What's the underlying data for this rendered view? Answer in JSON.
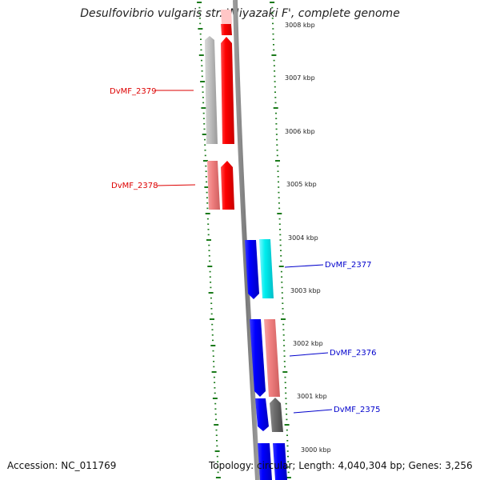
{
  "title": "Desulfovibrio vulgaris str. 'Miyazaki F', complete genome",
  "footer": {
    "accession": "Accession: NC_011769",
    "topology": "Topology: circular; Length: 4,040,304 bp; Genes: 3,256"
  },
  "colors": {
    "forward_gene": "#ff0000",
    "reverse_gene": "#0000ff",
    "cyan_gene": "#00e5ee",
    "pink_gene": "#f08080",
    "gray_gene": "#c0c0c0",
    "dark_gray_gene": "#707070",
    "tick": "#1a7a1a",
    "backbone": "#808080",
    "label_red": "#dd0000",
    "label_blue": "#0000cc"
  },
  "scale_ticks": [
    "3008 kbp",
    "3007 kbp",
    "3006 kbp",
    "3005 kbp",
    "3004 kbp",
    "3003 kbp",
    "3002 kbp",
    "3001 kbp",
    "3000 kbp"
  ],
  "gene_labels": [
    "DvMF_2379",
    "DvMF_2378",
    "DvMF_2377",
    "DvMF_2376",
    "DvMF_2375"
  ]
}
